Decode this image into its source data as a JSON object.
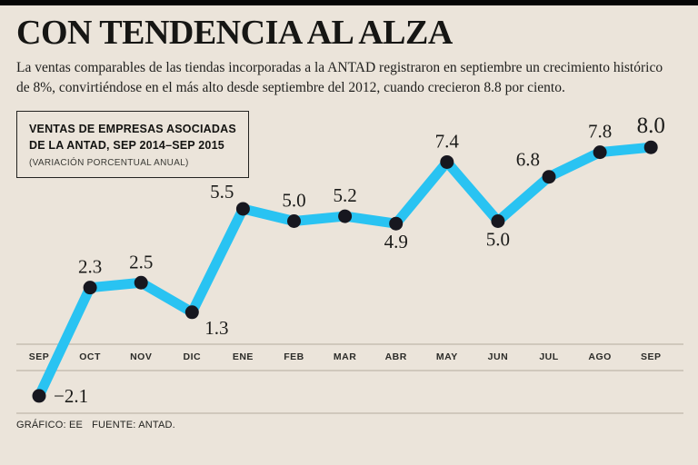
{
  "page": {
    "title": "CON TENDENCIA AL ALZA",
    "intro": "La ventas comparables de las tiendas incorporadas a la ANTAD registraron en septiembre un crecimiento histórico de 8%, convirtiéndose en el más alto desde septiembre del 2012, cuando crecieron 8.8 por ciento.",
    "footer": {
      "credit": "GRÁFICO: EE",
      "source": "FUENTE: ANTAD."
    }
  },
  "legend": {
    "title_line1": "VENTAS DE EMPRESAS ASOCIADAS",
    "title_line2": "DE LA ANTAD, SEP 2014–SEP 2015",
    "subtitle": "(VARIACIÓN PORCENTUAL ANUAL)"
  },
  "colors": {
    "background": "#ebe4da",
    "top_bar": "#060606",
    "line": "#29c3f2",
    "dot": "#17171f",
    "rule": "#b5ac9e",
    "text": "#1b1b19"
  },
  "chart_data": {
    "type": "line",
    "title": "VENTAS DE EMPRESAS ASOCIADAS DE LA ANTAD, SEP 2014–SEP 2015 (VARIACIÓN PORCENTUAL ANUAL)",
    "xlabel": "",
    "ylabel": "",
    "categories": [
      "SEP",
      "OCT",
      "NOV",
      "DIC",
      "ENE",
      "FEB",
      "MAR",
      "ABR",
      "MAY",
      "JUN",
      "JUL",
      "AGO",
      "SEP"
    ],
    "values": [
      -2.1,
      2.3,
      2.5,
      1.3,
      5.5,
      5.0,
      5.2,
      4.9,
      7.4,
      5.0,
      6.8,
      7.8,
      8.0
    ],
    "labels": [
      "−2.1",
      "2.3",
      "2.5",
      "1.3",
      "5.5",
      "5.0",
      "5.2",
      "4.9",
      "7.4",
      "5.0",
      "6.8",
      "7.8",
      "8.0"
    ],
    "label_positions": [
      "right",
      "above",
      "above",
      "below-right",
      "above-left",
      "above",
      "above",
      "below",
      "above",
      "below",
      "above-left",
      "above",
      "above"
    ],
    "ylim": [
      -3,
      9
    ],
    "zero_line": true,
    "grid": false,
    "legend_position": "top-left"
  }
}
